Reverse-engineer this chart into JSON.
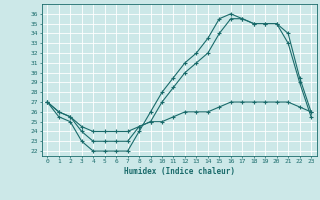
{
  "title": "",
  "xlabel": "Humidex (Indice chaleur)",
  "xlim": [
    -0.5,
    23.5
  ],
  "ylim": [
    21.5,
    37.0
  ],
  "xticks": [
    0,
    1,
    2,
    3,
    4,
    5,
    6,
    7,
    8,
    9,
    10,
    11,
    12,
    13,
    14,
    15,
    16,
    17,
    18,
    19,
    20,
    21,
    22,
    23
  ],
  "yticks": [
    22,
    23,
    24,
    25,
    26,
    27,
    28,
    29,
    30,
    31,
    32,
    33,
    34,
    35,
    36
  ],
  "bg_color": "#cce8e8",
  "line_color": "#1a6b6b",
  "grid_color": "#ffffff",
  "series1_x": [
    0,
    1,
    2,
    3,
    4,
    5,
    6,
    7,
    8,
    9,
    10,
    11,
    12,
    13,
    14,
    15,
    16,
    17,
    18,
    19,
    20,
    21,
    22,
    23
  ],
  "series1_y": [
    27,
    25.5,
    25,
    23,
    22,
    22,
    22,
    22,
    24,
    26,
    28,
    29.5,
    31,
    32,
    33.5,
    35.5,
    36,
    35.5,
    35,
    35,
    35,
    33,
    29,
    25.5
  ],
  "series2_x": [
    0,
    1,
    2,
    3,
    4,
    5,
    6,
    7,
    8,
    9,
    10,
    11,
    12,
    13,
    14,
    15,
    16,
    17,
    18,
    19,
    20,
    21,
    22,
    23
  ],
  "series2_y": [
    27,
    26,
    25.5,
    24,
    23,
    23,
    23,
    23,
    24.5,
    25,
    27,
    28.5,
    30,
    31,
    32,
    34,
    35.5,
    35.5,
    35,
    35,
    35,
    34,
    29.5,
    26
  ],
  "series3_x": [
    0,
    1,
    2,
    3,
    4,
    5,
    6,
    7,
    8,
    9,
    10,
    11,
    12,
    13,
    14,
    15,
    16,
    17,
    18,
    19,
    20,
    21,
    22,
    23
  ],
  "series3_y": [
    27,
    26,
    25.5,
    24.5,
    24,
    24,
    24,
    24,
    24.5,
    25,
    25,
    25.5,
    26,
    26,
    26,
    26.5,
    27,
    27,
    27,
    27,
    27,
    27,
    26.5,
    26
  ]
}
